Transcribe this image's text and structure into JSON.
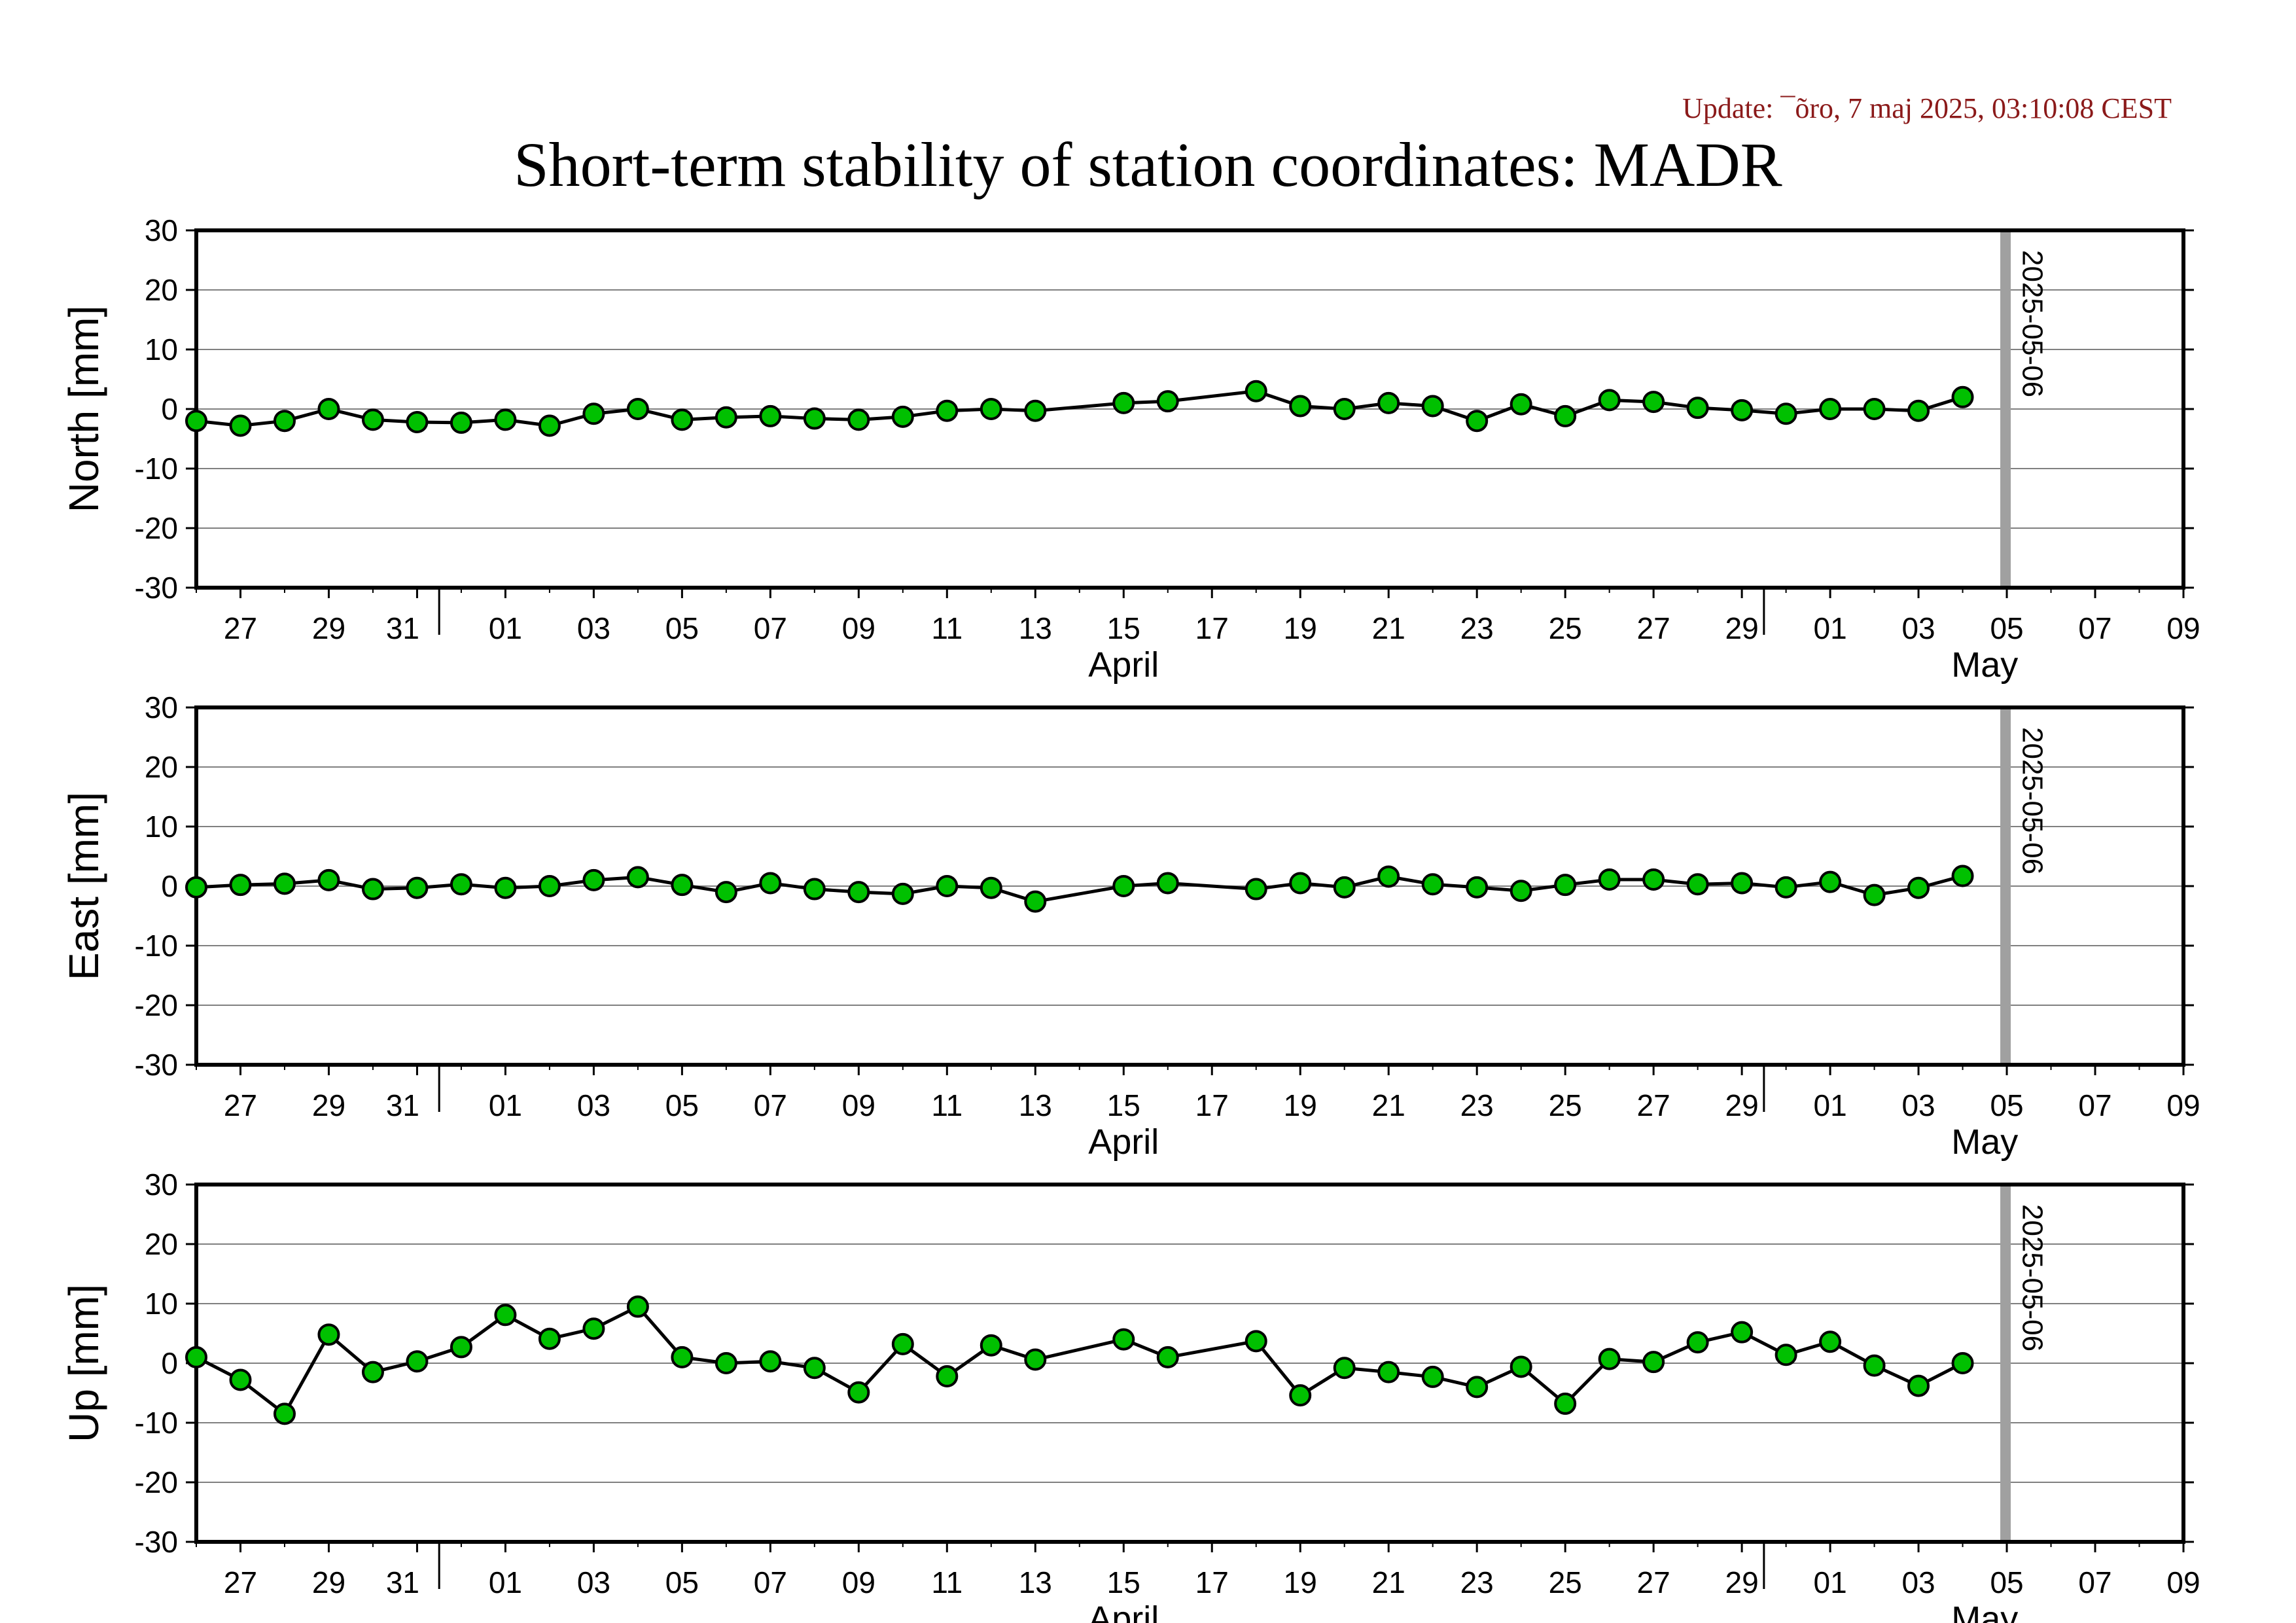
{
  "update_text": "Update: ¯õro, 7 maj 2025, 03:10:08 CEST",
  "title": "Short-term stability of station coordinates: MADR",
  "colors": {
    "marker_fill": "#00c000",
    "marker_stroke": "#000000",
    "line": "#000000",
    "grid": "#808080",
    "marker_line": "#a0a0a0",
    "update_text": "#8b1a1a"
  },
  "chart_data": [
    {
      "type": "line",
      "ylabel": "North [mm]",
      "ylim": [
        -30,
        30
      ],
      "yticks": [
        -30,
        -20,
        -10,
        0,
        10,
        20,
        30
      ],
      "xlim": [
        "2025-03-26",
        "2025-05-10"
      ],
      "grid": true,
      "x_tick_labels": [
        "27",
        "29",
        "31",
        "01",
        "03",
        "05",
        "07",
        "09",
        "11",
        "13",
        "15",
        "17",
        "19",
        "21",
        "23",
        "25",
        "27",
        "29",
        "01",
        "03",
        "05",
        "07",
        "09"
      ],
      "month_labels": [
        "April",
        "May"
      ],
      "vertical_marker": {
        "date": "2025-05-06",
        "label": "2025-05-06"
      },
      "series": [
        {
          "x": [
            "2025-03-26",
            "2025-03-27",
            "2025-03-28",
            "2025-03-29",
            "2025-03-30",
            "2025-03-31",
            "2025-04-01",
            "2025-04-02",
            "2025-04-03",
            "2025-04-04",
            "2025-04-05",
            "2025-04-06",
            "2025-04-07",
            "2025-04-08",
            "2025-04-09",
            "2025-04-10",
            "2025-04-11",
            "2025-04-12",
            "2025-04-13",
            "2025-04-14",
            "2025-04-16",
            "2025-04-17",
            "2025-04-19",
            "2025-04-20",
            "2025-04-21",
            "2025-04-22",
            "2025-04-23",
            "2025-04-24",
            "2025-04-25",
            "2025-04-26",
            "2025-04-27",
            "2025-04-28",
            "2025-04-29",
            "2025-04-30",
            "2025-05-01",
            "2025-05-02",
            "2025-05-03",
            "2025-05-04",
            "2025-05-05"
          ],
          "y": [
            -2,
            -2.8,
            -2,
            0,
            -1.8,
            -2.2,
            -2.3,
            -1.8,
            -2.8,
            -0.8,
            0,
            -1.8,
            -1.4,
            -1.2,
            -1.6,
            -1.8,
            -1.3,
            -0.3,
            0,
            -0.3,
            1,
            1.3,
            3,
            0.5,
            0,
            1,
            0.5,
            -2,
            0.8,
            -1.2,
            1.5,
            1.2,
            0.2,
            -0.2,
            -0.8,
            0,
            0,
            -0.3,
            2
          ]
        }
      ]
    },
    {
      "type": "line",
      "ylabel": "East [mm]",
      "ylim": [
        -30,
        30
      ],
      "yticks": [
        -30,
        -20,
        -10,
        0,
        10,
        20,
        30
      ],
      "xlim": [
        "2025-03-26",
        "2025-05-10"
      ],
      "grid": true,
      "x_tick_labels": [
        "27",
        "29",
        "31",
        "01",
        "03",
        "05",
        "07",
        "09",
        "11",
        "13",
        "15",
        "17",
        "19",
        "21",
        "23",
        "25",
        "27",
        "29",
        "01",
        "03",
        "05",
        "07",
        "09"
      ],
      "month_labels": [
        "April",
        "May"
      ],
      "vertical_marker": {
        "date": "2025-05-06",
        "label": "2025-05-06"
      },
      "series": [
        {
          "x": [
            "2025-03-26",
            "2025-03-27",
            "2025-03-28",
            "2025-03-29",
            "2025-03-30",
            "2025-03-31",
            "2025-04-01",
            "2025-04-02",
            "2025-04-03",
            "2025-04-04",
            "2025-04-05",
            "2025-04-06",
            "2025-04-07",
            "2025-04-08",
            "2025-04-09",
            "2025-04-10",
            "2025-04-11",
            "2025-04-12",
            "2025-04-13",
            "2025-04-14",
            "2025-04-16",
            "2025-04-17",
            "2025-04-19",
            "2025-04-20",
            "2025-04-21",
            "2025-04-22",
            "2025-04-23",
            "2025-04-24",
            "2025-04-25",
            "2025-04-26",
            "2025-04-27",
            "2025-04-28",
            "2025-04-29",
            "2025-04-30",
            "2025-05-01",
            "2025-05-02",
            "2025-05-03",
            "2025-05-04",
            "2025-05-05"
          ],
          "y": [
            -0.2,
            0.2,
            0.4,
            1,
            -0.5,
            -0.3,
            0.3,
            -0.3,
            0,
            1,
            1.5,
            0.2,
            -1,
            0.5,
            -0.5,
            -1,
            -1.3,
            0,
            -0.3,
            -2.6,
            0,
            0.5,
            -0.5,
            0.5,
            -0.2,
            1.6,
            0.3,
            -0.2,
            -0.8,
            0.2,
            1.1,
            1.1,
            0.3,
            0.5,
            -0.2,
            0.7,
            -1.5,
            -0.3,
            1.7
          ]
        }
      ]
    },
    {
      "type": "line",
      "ylabel": "Up [mm]",
      "ylim": [
        -30,
        30
      ],
      "yticks": [
        -30,
        -20,
        -10,
        0,
        10,
        20,
        30
      ],
      "xlim": [
        "2025-03-26",
        "2025-05-10"
      ],
      "grid": true,
      "x_tick_labels": [
        "27",
        "29",
        "31",
        "01",
        "03",
        "05",
        "07",
        "09",
        "11",
        "13",
        "15",
        "17",
        "19",
        "21",
        "23",
        "25",
        "27",
        "29",
        "01",
        "03",
        "05",
        "07",
        "09"
      ],
      "month_labels": [
        "April",
        "May"
      ],
      "vertical_marker": {
        "date": "2025-05-06",
        "label": "2025-05-06"
      },
      "series": [
        {
          "x": [
            "2025-03-26",
            "2025-03-27",
            "2025-03-28",
            "2025-03-29",
            "2025-03-30",
            "2025-03-31",
            "2025-04-01",
            "2025-04-02",
            "2025-04-03",
            "2025-04-04",
            "2025-04-05",
            "2025-04-06",
            "2025-04-07",
            "2025-04-08",
            "2025-04-09",
            "2025-04-10",
            "2025-04-11",
            "2025-04-12",
            "2025-04-13",
            "2025-04-14",
            "2025-04-16",
            "2025-04-17",
            "2025-04-19",
            "2025-04-20",
            "2025-04-21",
            "2025-04-22",
            "2025-04-23",
            "2025-04-24",
            "2025-04-25",
            "2025-04-26",
            "2025-04-27",
            "2025-04-28",
            "2025-04-29",
            "2025-04-30",
            "2025-05-01",
            "2025-05-02",
            "2025-05-03",
            "2025-05-04",
            "2025-05-05"
          ],
          "y": [
            1,
            -2.8,
            -8.5,
            4.8,
            -1.5,
            0.3,
            2.7,
            8.1,
            4.1,
            5.8,
            9.5,
            1,
            0,
            0.3,
            -0.8,
            -4.9,
            3.2,
            -2.2,
            3,
            0.6,
            4,
            1,
            3.7,
            -5.4,
            -0.8,
            -1.5,
            -2.3,
            -4,
            -0.6,
            -6.8,
            0.7,
            0.2,
            3.5,
            5.2,
            1.4,
            3.6,
            -0.4,
            -3.8,
            0
          ]
        }
      ]
    }
  ]
}
